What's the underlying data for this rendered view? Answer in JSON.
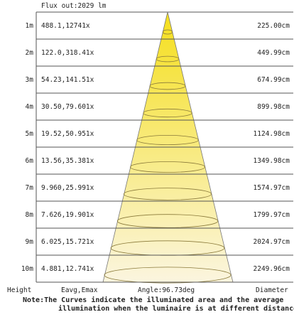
{
  "header": {
    "flux_out": "Flux out:2029 lm"
  },
  "rows": [
    {
      "height": "1m",
      "values": "488.1,12741x",
      "diameter": "225.00cm"
    },
    {
      "height": "2m",
      "values": "122.0,318.41x",
      "diameter": "449.99cm"
    },
    {
      "height": "3m",
      "values": "54.23,141.51x",
      "diameter": "674.99cm"
    },
    {
      "height": "4m",
      "values": "30.50,79.601x",
      "diameter": "899.98cm"
    },
    {
      "height": "5m",
      "values": "19.52,50.951x",
      "diameter": "1124.98cm"
    },
    {
      "height": "6m",
      "values": "13.56,35.381x",
      "diameter": "1349.98cm"
    },
    {
      "height": "7m",
      "values": "9.960,25.991x",
      "diameter": "1574.97cm"
    },
    {
      "height": "8m",
      "values": "7.626,19.901x",
      "diameter": "1799.97cm"
    },
    {
      "height": "9m",
      "values": "6.025,15.721x",
      "diameter": "2024.97cm"
    },
    {
      "height": "10m",
      "values": "4.881,12.741x",
      "diameter": "2249.96cm"
    }
  ],
  "footer": {
    "height_label": "Height",
    "eavg_emax_label": "Eavg,Emax",
    "angle": "Angle:96.73deg",
    "diameter_label": "Diameter"
  },
  "note": {
    "line1": "Note:The Curves indicate the illuminated area and the average",
    "line2": "illumination when the luminaire is at different distance."
  },
  "colors": {
    "cone_top": "#f5df1c",
    "cone_bottom": "#fbf5df",
    "line": "#555555",
    "ellipse": "#8a7a3a"
  }
}
